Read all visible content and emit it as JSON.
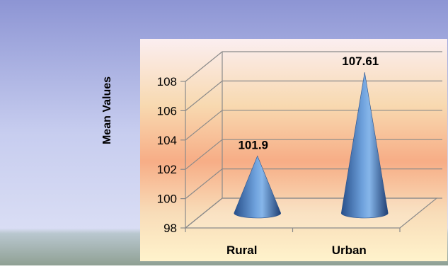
{
  "chart_data": {
    "type": "bar",
    "bar_shape": "cone",
    "categories": [
      "Rural",
      "Urban"
    ],
    "values": [
      101.9,
      107.61
    ],
    "data_labels": [
      "101.9",
      "107.61"
    ],
    "ylabel": "Mean Values",
    "xlabel": "",
    "title": "",
    "ylim": [
      98,
      108
    ],
    "yticks": [
      "98",
      "100",
      "102",
      "104",
      "106",
      "108"
    ],
    "grid": true,
    "legend": "none",
    "series_color": "#4f81bd"
  }
}
